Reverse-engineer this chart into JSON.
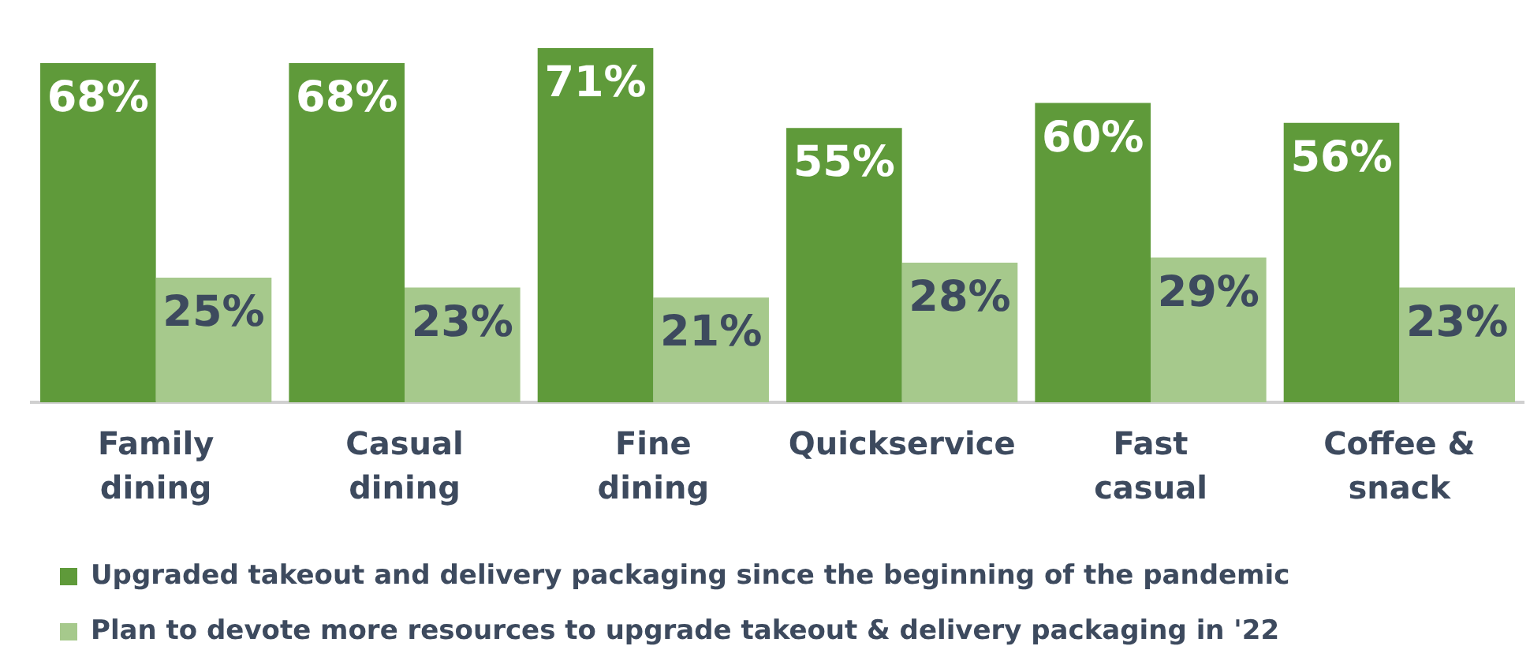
{
  "chart_data": {
    "type": "bar",
    "categories": [
      "Family dining",
      "Casual dining",
      "Fine dining",
      "Quickservice",
      "Fast casual",
      "Coffee & snack"
    ],
    "series": [
      {
        "name": "Upgraded takeout and delivery packaging since the beginning of the pandemic",
        "color": "#5f9a3a",
        "values": [
          68,
          68,
          71,
          55,
          60,
          56
        ],
        "value_labels": [
          "68%",
          "68%",
          "71%",
          "55%",
          "60%",
          "56%"
        ]
      },
      {
        "name": "Plan to devote more resources to upgrade takeout & delivery packaging in '22",
        "color": "#a6c98c",
        "values": [
          25,
          23,
          21,
          28,
          29,
          23
        ],
        "value_labels": [
          "25%",
          "23%",
          "21%",
          "28%",
          "29%",
          "23%"
        ]
      }
    ],
    "tick_labels": "x",
    "grid": false,
    "legend": "bottom"
  }
}
